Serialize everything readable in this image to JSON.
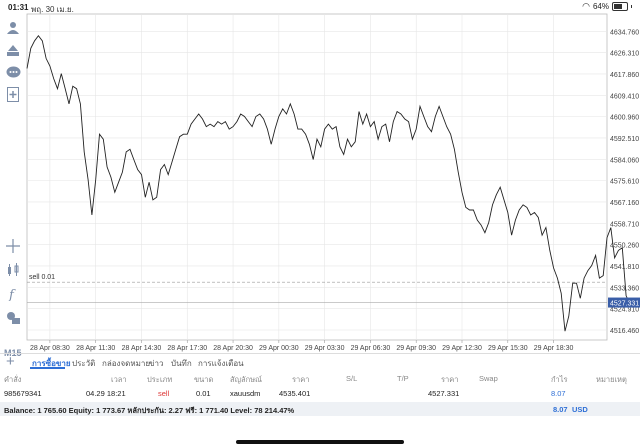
{
  "status_bar": {
    "time": "01:31",
    "date": "พฤ. 30 เม.ย.",
    "battery": "64%"
  },
  "toolbar": {
    "icons": [
      "accounts-icon",
      "trade-icon",
      "chat-icon",
      "add-document-icon"
    ],
    "bottom_icons": [
      "crosshair-icon",
      "indicators-icon",
      "function-icon",
      "objects-icon"
    ],
    "timeframe": "M15"
  },
  "chart_data": {
    "type": "line",
    "ylim": [
      4512.5,
      4641.6
    ],
    "y_ticks": [
      "4634.760",
      "4626.310",
      "4617.860",
      "4609.410",
      "4600.960",
      "4592.510",
      "4584.060",
      "4575.610",
      "4567.160",
      "4558.710",
      "4550.260",
      "4541.810",
      "4533.360",
      "4524.910",
      "4516.460"
    ],
    "y_tick_values": [
      4634.76,
      4626.31,
      4617.86,
      4609.41,
      4600.96,
      4592.51,
      4584.06,
      4575.61,
      4567.16,
      4558.71,
      4550.26,
      4541.81,
      4533.36,
      4524.91,
      4516.46
    ],
    "x_ticks": [
      "28 Apr 08:30",
      "28 Apr 11:30",
      "28 Apr 14:30",
      "28 Apr 17:30",
      "28 Apr 20:30",
      "29 Apr 00:30",
      "29 Apr 03:30",
      "29 Apr 06:30",
      "29 Apr 09:30",
      "29 Apr 12:30",
      "29 Apr 15:30",
      "29 Apr 18:30"
    ],
    "x_range": [
      0,
      152
    ],
    "x_tick_positions": [
      6,
      18,
      30,
      42,
      54,
      66,
      78,
      90,
      102,
      114,
      126,
      138
    ],
    "series": [
      {
        "values": [
          4620,
          4628,
          4631,
          4633,
          4631,
          4624,
          4621,
          4616,
          4612,
          4618,
          4612,
          4606,
          4613,
          4612,
          4606,
          4587,
          4576,
          4562,
          4576,
          4594,
          4592,
          4581,
          4577,
          4571,
          4575,
          4579,
          4587,
          4588,
          4584,
          4580,
          4578,
          4569,
          4575,
          4568,
          4569,
          4580,
          4582,
          4578,
          4583,
          4588,
          4593,
          4594,
          4594,
          4598,
          4600,
          4602,
          4600,
          4597,
          4598,
          4597,
          4599,
          4598,
          4599,
          4596,
          4597,
          4599,
          4602,
          4601,
          4599,
          4597,
          4601,
          4602,
          4600,
          4596,
          4590,
          4596,
          4601,
          4604,
          4602,
          4606,
          4602,
          4596,
          4596,
          4594,
          4590,
          4584,
          4592,
          4589,
          4596,
          4598,
          4596,
          4597,
          4589,
          4586,
          4592,
          4589,
          4591,
          4603,
          4598,
          4602,
          4597,
          4599,
          4592,
          4597,
          4598,
          4591,
          4599,
          4603,
          4602,
          4600,
          4599,
          4592,
          4596,
          4605,
          4601,
          4597,
          4595,
          4601,
          4605,
          4601,
          4597,
          4594,
          4588,
          4579,
          4571,
          4565,
          4564,
          4564,
          4560,
          4558,
          4555,
          4559,
          4566,
          4570,
          4573,
          4568,
          4563,
          4554,
          4560,
          4564,
          4566,
          4565,
          4562,
          4563,
          4561,
          4554,
          4557,
          4548,
          4541,
          4537,
          4531,
          4516,
          4522,
          4535,
          4535,
          4529,
          4537,
          4540,
          4542,
          4546,
          4537,
          4538,
          4553,
          4557,
          4545,
          4548,
          4549,
          4530,
          4527
        ],
        "last": 4527.331
      }
    ],
    "current_price_label": "4527.331",
    "order_line": {
      "label": "sell 0.01",
      "price": 4535.401
    }
  },
  "tabs": {
    "items": [
      "การซื้อขาย",
      "ประวัติ",
      "กล่องจดหมาย",
      "ข่าว",
      "บันทึก",
      "การแจ้งเตือน"
    ],
    "active_index": 0
  },
  "table": {
    "headers": [
      "คำสั่ง",
      "เวลา",
      "ประเภท",
      "ขนาด",
      "สัญลักษณ์",
      "ราคา",
      "S/L",
      "T/P",
      "ราคา",
      "Swap",
      "กำไร",
      "หมายเหตุ"
    ],
    "rows": [
      {
        "order": "985679341",
        "time": "04.29 18:21",
        "type": "sell",
        "size": "0.01",
        "symbol": "xauusdm",
        "price": "4535.401",
        "sl": "",
        "tp": "",
        "current_price": "4527.331",
        "swap": "",
        "profit": "8.07",
        "comment": ""
      }
    ]
  },
  "balance": {
    "text": "Balance: 1 765.60 Equity: 1 773.67 หลักประกัน: 2.27 ฟรี: 1 771.40 Level: 78 214.47%",
    "profit": "8.07",
    "currency": "USD"
  },
  "colors": {
    "accent": "#2e6fd6",
    "sell": "#dd3333",
    "line": "#222222",
    "grid": "#e6e6e6",
    "price_badge": "#3a5ea8"
  }
}
